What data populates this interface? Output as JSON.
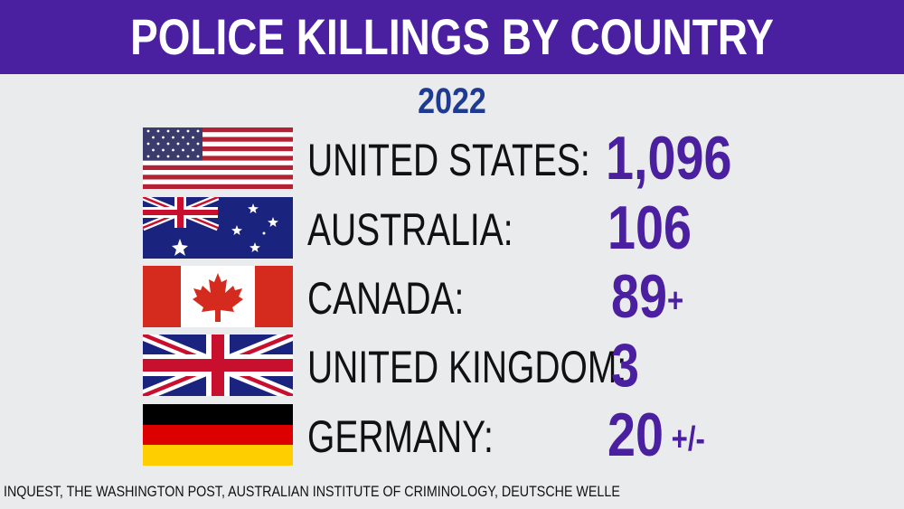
{
  "header": {
    "title": "POLICE KILLINGS BY COUNTRY"
  },
  "year": "2022",
  "rows": [
    {
      "country": "UNITED STATES:",
      "value": "1,096",
      "suffix": "",
      "flag": "us-flag-icon"
    },
    {
      "country": "AUSTRALIA:",
      "value": "106",
      "suffix": "",
      "flag": "australia-flag-icon"
    },
    {
      "country": "CANADA:",
      "value": "89",
      "suffix": "+",
      "flag": "canada-flag-icon"
    },
    {
      "country": "UNITED KINGDOM:",
      "value": "3",
      "suffix": "",
      "flag": "uk-flag-icon"
    },
    {
      "country": "GERMANY:",
      "value": "20",
      "suffix": " +/-",
      "flag": "germany-flag-icon"
    }
  ],
  "source": "INQUEST, THE WASHINGTON POST, AUSTRALIAN INSTITUTE OF CRIMINOLOGY, DEUTSCHE WELLE",
  "colors": {
    "header_bg": "#4a1fa0",
    "year": "#1f3a93",
    "value": "#4a1fa0"
  }
}
